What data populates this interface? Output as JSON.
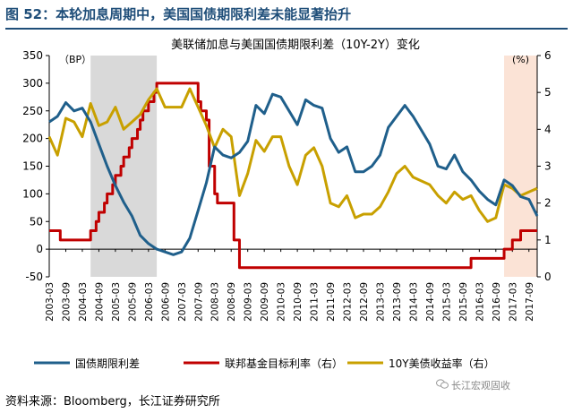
{
  "figure_title": "图 52：本轮加息周期中，美国国债期限利差未能显著抬升",
  "source": "资料来源：Bloomberg，长江证券研究所",
  "watermark": "长江宏观固收",
  "colors": {
    "spread": "#1f5f8b",
    "fed_funds": "#c00000",
    "yield10y": "#c8a000",
    "shade_gray": "#d9d9d9",
    "shade_pink": "#fbe3d6",
    "title": "#1f4e79"
  },
  "chart_data": {
    "type": "line",
    "title": "美联储加息与美国国债期限利差（10Y-2Y）变化",
    "left_axis": {
      "unit": "（BP）",
      "min": -50,
      "max": 350,
      "ticks": [
        -50,
        0,
        50,
        100,
        150,
        200,
        250,
        300,
        350
      ]
    },
    "right_axis": {
      "unit": "(%)",
      "min": 0,
      "max": 6,
      "ticks": [
        0,
        1,
        2,
        3,
        4,
        5,
        6
      ]
    },
    "x_axis": {
      "min": "2003-03",
      "max": "2017-12",
      "tick_labels": [
        "2003-03",
        "2003-09",
        "2004-03",
        "2004-09",
        "2005-03",
        "2005-09",
        "2006-03",
        "2006-09",
        "2007-03",
        "2007-09",
        "2008-03",
        "2008-09",
        "2009-03",
        "2009-09",
        "2010-03",
        "2010-09",
        "2011-03",
        "2011-09",
        "2012-03",
        "2012-09",
        "2013-03",
        "2013-09",
        "2014-03",
        "2014-09",
        "2015-03",
        "2015-09",
        "2016-03",
        "2016-09",
        "2017-03",
        "2017-09"
      ]
    },
    "shaded_periods": [
      {
        "start": "2004-06",
        "end": "2006-06",
        "color": "gray"
      },
      {
        "start": "2016-12",
        "end": "2017-12",
        "color": "pink"
      }
    ],
    "series": [
      {
        "name": "国债期限利差",
        "axis": "left",
        "points": [
          [
            "2003-03",
            230
          ],
          [
            "2003-06",
            240
          ],
          [
            "2003-09",
            265
          ],
          [
            "2003-12",
            250
          ],
          [
            "2004-03",
            255
          ],
          [
            "2004-06",
            230
          ],
          [
            "2004-09",
            190
          ],
          [
            "2004-12",
            150
          ],
          [
            "2005-03",
            115
          ],
          [
            "2005-06",
            85
          ],
          [
            "2005-09",
            60
          ],
          [
            "2005-12",
            25
          ],
          [
            "2006-03",
            10
          ],
          [
            "2006-06",
            0
          ],
          [
            "2006-09",
            -5
          ],
          [
            "2006-12",
            -10
          ],
          [
            "2007-03",
            -5
          ],
          [
            "2007-06",
            20
          ],
          [
            "2007-09",
            70
          ],
          [
            "2007-12",
            120
          ],
          [
            "2008-03",
            185
          ],
          [
            "2008-06",
            170
          ],
          [
            "2008-09",
            165
          ],
          [
            "2008-12",
            175
          ],
          [
            "2009-03",
            195
          ],
          [
            "2009-06",
            260
          ],
          [
            "2009-09",
            245
          ],
          [
            "2009-12",
            280
          ],
          [
            "2010-03",
            275
          ],
          [
            "2010-06",
            250
          ],
          [
            "2010-09",
            225
          ],
          [
            "2010-12",
            270
          ],
          [
            "2011-03",
            260
          ],
          [
            "2011-06",
            255
          ],
          [
            "2011-09",
            200
          ],
          [
            "2011-12",
            175
          ],
          [
            "2012-03",
            185
          ],
          [
            "2012-06",
            140
          ],
          [
            "2012-09",
            140
          ],
          [
            "2012-12",
            150
          ],
          [
            "2013-03",
            170
          ],
          [
            "2013-06",
            220
          ],
          [
            "2013-09",
            240
          ],
          [
            "2013-12",
            260
          ],
          [
            "2014-03",
            240
          ],
          [
            "2014-06",
            215
          ],
          [
            "2014-09",
            190
          ],
          [
            "2014-12",
            150
          ],
          [
            "2015-03",
            145
          ],
          [
            "2015-06",
            170
          ],
          [
            "2015-09",
            140
          ],
          [
            "2015-12",
            125
          ],
          [
            "2016-03",
            105
          ],
          [
            "2016-06",
            90
          ],
          [
            "2016-09",
            80
          ],
          [
            "2016-12",
            125
          ],
          [
            "2017-03",
            115
          ],
          [
            "2017-06",
            95
          ],
          [
            "2017-09",
            90
          ],
          [
            "2017-12",
            60
          ]
        ]
      },
      {
        "name": "联邦基金目标利率（右）",
        "axis": "right",
        "points": [
          [
            "2003-03",
            1.25
          ],
          [
            "2003-06",
            1.25
          ],
          [
            "2003-07",
            1.0
          ],
          [
            "2004-05",
            1.0
          ],
          [
            "2004-06",
            1.25
          ],
          [
            "2004-08",
            1.5
          ],
          [
            "2004-09",
            1.75
          ],
          [
            "2004-11",
            2.0
          ],
          [
            "2004-12",
            2.25
          ],
          [
            "2005-02",
            2.5
          ],
          [
            "2005-03",
            2.75
          ],
          [
            "2005-05",
            3.0
          ],
          [
            "2005-06",
            3.25
          ],
          [
            "2005-08",
            3.5
          ],
          [
            "2005-09",
            3.75
          ],
          [
            "2005-11",
            4.0
          ],
          [
            "2005-12",
            4.25
          ],
          [
            "2006-01",
            4.5
          ],
          [
            "2006-03",
            4.75
          ],
          [
            "2006-05",
            5.0
          ],
          [
            "2006-06",
            5.25
          ],
          [
            "2007-08",
            5.25
          ],
          [
            "2007-09",
            4.75
          ],
          [
            "2007-10",
            4.5
          ],
          [
            "2007-12",
            4.25
          ],
          [
            "2008-01",
            3.0
          ],
          [
            "2008-03",
            2.25
          ],
          [
            "2008-04",
            2.0
          ],
          [
            "2008-10",
            1.0
          ],
          [
            "2008-12",
            0.25
          ],
          [
            "2015-11",
            0.25
          ],
          [
            "2015-12",
            0.5
          ],
          [
            "2016-11",
            0.5
          ],
          [
            "2016-12",
            0.75
          ],
          [
            "2017-02",
            0.75
          ],
          [
            "2017-03",
            1.0
          ],
          [
            "2017-05",
            1.0
          ],
          [
            "2017-06",
            1.25
          ],
          [
            "2017-12",
            1.25
          ]
        ]
      },
      {
        "name": "10Y美债收益率（右）",
        "axis": "right",
        "points": [
          [
            "2003-03",
            3.8
          ],
          [
            "2003-06",
            3.3
          ],
          [
            "2003-09",
            4.3
          ],
          [
            "2003-12",
            4.2
          ],
          [
            "2004-03",
            3.8
          ],
          [
            "2004-06",
            4.7
          ],
          [
            "2004-09",
            4.1
          ],
          [
            "2004-12",
            4.2
          ],
          [
            "2005-03",
            4.6
          ],
          [
            "2005-06",
            4.0
          ],
          [
            "2005-09",
            4.2
          ],
          [
            "2005-12",
            4.4
          ],
          [
            "2006-03",
            4.8
          ],
          [
            "2006-06",
            5.1
          ],
          [
            "2006-09",
            4.6
          ],
          [
            "2006-12",
            4.6
          ],
          [
            "2007-03",
            4.6
          ],
          [
            "2007-06",
            5.1
          ],
          [
            "2007-09",
            4.6
          ],
          [
            "2007-12",
            4.1
          ],
          [
            "2008-03",
            3.5
          ],
          [
            "2008-06",
            4.0
          ],
          [
            "2008-09",
            3.8
          ],
          [
            "2008-12",
            2.2
          ],
          [
            "2009-03",
            2.8
          ],
          [
            "2009-06",
            3.7
          ],
          [
            "2009-09",
            3.4
          ],
          [
            "2009-12",
            3.8
          ],
          [
            "2010-03",
            3.8
          ],
          [
            "2010-06",
            3.0
          ],
          [
            "2010-09",
            2.5
          ],
          [
            "2010-12",
            3.3
          ],
          [
            "2011-03",
            3.5
          ],
          [
            "2011-06",
            3.0
          ],
          [
            "2011-09",
            2.0
          ],
          [
            "2011-12",
            1.9
          ],
          [
            "2012-03",
            2.2
          ],
          [
            "2012-06",
            1.6
          ],
          [
            "2012-09",
            1.7
          ],
          [
            "2012-12",
            1.7
          ],
          [
            "2013-03",
            1.9
          ],
          [
            "2013-06",
            2.3
          ],
          [
            "2013-09",
            2.8
          ],
          [
            "2013-12",
            3.0
          ],
          [
            "2014-03",
            2.7
          ],
          [
            "2014-06",
            2.6
          ],
          [
            "2014-09",
            2.5
          ],
          [
            "2014-12",
            2.2
          ],
          [
            "2015-03",
            2.0
          ],
          [
            "2015-06",
            2.3
          ],
          [
            "2015-09",
            2.1
          ],
          [
            "2015-12",
            2.2
          ],
          [
            "2016-03",
            1.8
          ],
          [
            "2016-06",
            1.5
          ],
          [
            "2016-09",
            1.6
          ],
          [
            "2016-12",
            2.5
          ],
          [
            "2017-03",
            2.4
          ],
          [
            "2017-06",
            2.2
          ],
          [
            "2017-09",
            2.3
          ],
          [
            "2017-12",
            2.4
          ]
        ]
      }
    ],
    "legend": {
      "position": "bottom",
      "items": [
        "国债期限利差",
        "联邦基金目标利率（右）",
        "10Y美债收益率（右）"
      ]
    }
  }
}
